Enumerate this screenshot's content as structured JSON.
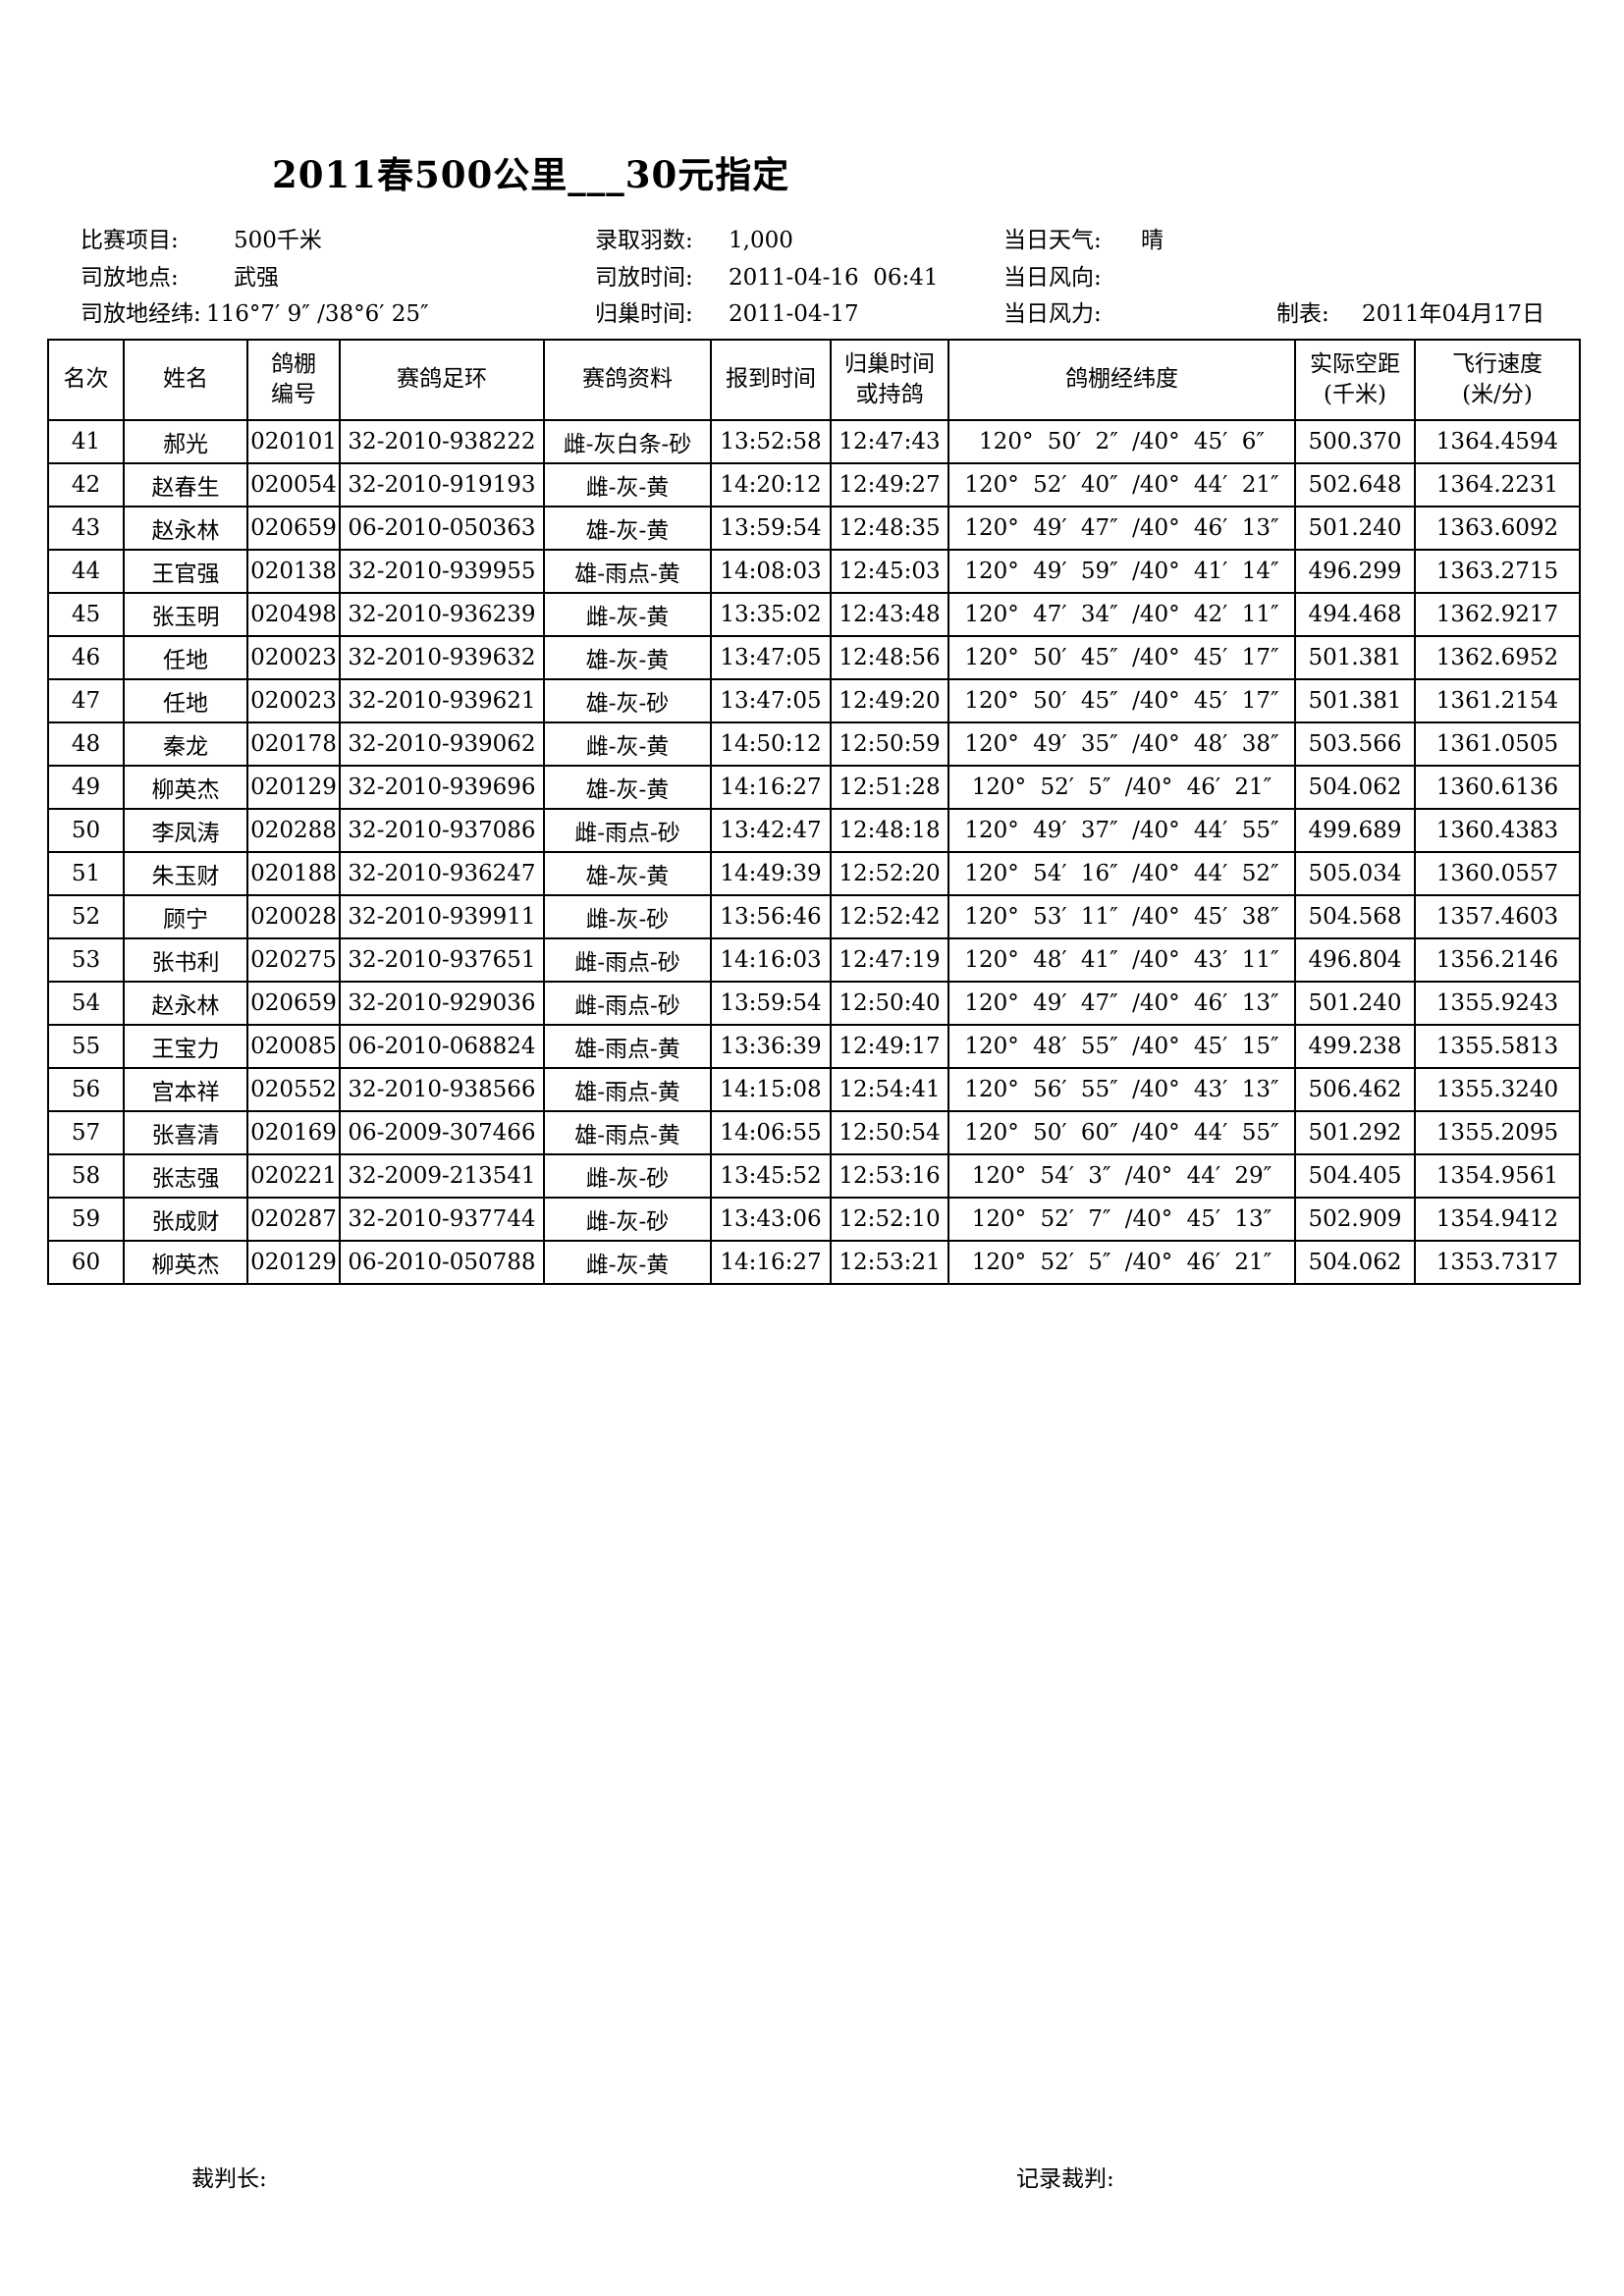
{
  "page": {
    "title": "2011春500公里___30元指定"
  },
  "info": {
    "line1": {
      "label1": "比赛项目:",
      "value1": "500千米",
      "label2": "录取羽数:",
      "value2": "1,000",
      "label3": "当日天气:",
      "value3": "晴"
    },
    "line2": {
      "label1": "司放地点:",
      "value1": "武强",
      "label2": "司放时间:",
      "value2": "2011-04-16  06:41",
      "label3": "当日风向:",
      "value3": ""
    },
    "line3": {
      "label1": "司放地经纬:",
      "value1": "116°7′ 9″ /38°6′ 25″",
      "label2": "归巢时间:",
      "value2": "2011-04-17",
      "label3": "当日风力:",
      "value3": "",
      "label4": "制表:",
      "value4": "2011年04月17日"
    }
  },
  "table": {
    "headers": [
      "名次",
      "姓名",
      "鸽棚\n编号",
      "赛鸽足环",
      "赛鸽资料",
      "报到时间",
      "归巢时间\n或持鸽",
      "鸽棚经纬度",
      "实际空距\n(千米)",
      "飞行速度\n(米/分)"
    ],
    "col_keys": [
      "rank",
      "name",
      "loft-number",
      "ring-number",
      "pigeon-info",
      "report-time",
      "arrival-time",
      "loft-coordinates",
      "distance-km",
      "speed-m-min"
    ],
    "rows": [
      [
        "41",
        "郝光",
        "020101",
        "32-2010-938222",
        "雌-灰白条-砂",
        "13:52:58",
        "12:47:43",
        "120° 50′ 2″ /40° 45′ 6″",
        "500.370",
        "1364.4594"
      ],
      [
        "42",
        "赵春生",
        "020054",
        "32-2010-919193",
        "雌-灰-黄",
        "14:20:12",
        "12:49:27",
        "120° 52′ 40″ /40° 44′ 21″",
        "502.648",
        "1364.2231"
      ],
      [
        "43",
        "赵永林",
        "020659",
        "06-2010-050363",
        "雄-灰-黄",
        "13:59:54",
        "12:48:35",
        "120° 49′ 47″ /40° 46′ 13″",
        "501.240",
        "1363.6092"
      ],
      [
        "44",
        "王官强",
        "020138",
        "32-2010-939955",
        "雄-雨点-黄",
        "14:08:03",
        "12:45:03",
        "120° 49′ 59″ /40° 41′ 14″",
        "496.299",
        "1363.2715"
      ],
      [
        "45",
        "张玉明",
        "020498",
        "32-2010-936239",
        "雌-灰-黄",
        "13:35:02",
        "12:43:48",
        "120° 47′ 34″ /40° 42′ 11″",
        "494.468",
        "1362.9217"
      ],
      [
        "46",
        "任地",
        "020023",
        "32-2010-939632",
        "雄-灰-黄",
        "13:47:05",
        "12:48:56",
        "120° 50′ 45″ /40° 45′ 17″",
        "501.381",
        "1362.6952"
      ],
      [
        "47",
        "任地",
        "020023",
        "32-2010-939621",
        "雄-灰-砂",
        "13:47:05",
        "12:49:20",
        "120° 50′ 45″ /40° 45′ 17″",
        "501.381",
        "1361.2154"
      ],
      [
        "48",
        "秦龙",
        "020178",
        "32-2010-939062",
        "雌-灰-黄",
        "14:50:12",
        "12:50:59",
        "120° 49′ 35″ /40° 48′ 38″",
        "503.566",
        "1361.0505"
      ],
      [
        "49",
        "柳英杰",
        "020129",
        "32-2010-939696",
        "雄-灰-黄",
        "14:16:27",
        "12:51:28",
        "120° 52′ 5″ /40° 46′ 21″",
        "504.062",
        "1360.6136"
      ],
      [
        "50",
        "李凤涛",
        "020288",
        "32-2010-937086",
        "雌-雨点-砂",
        "13:42:47",
        "12:48:18",
        "120° 49′ 37″ /40° 44′ 55″",
        "499.689",
        "1360.4383"
      ],
      [
        "51",
        "朱玉财",
        "020188",
        "32-2010-936247",
        "雄-灰-黄",
        "14:49:39",
        "12:52:20",
        "120° 54′ 16″ /40° 44′ 52″",
        "505.034",
        "1360.0557"
      ],
      [
        "52",
        "顾宁",
        "020028",
        "32-2010-939911",
        "雌-灰-砂",
        "13:56:46",
        "12:52:42",
        "120° 53′ 11″ /40° 45′ 38″",
        "504.568",
        "1357.4603"
      ],
      [
        "53",
        "张书利",
        "020275",
        "32-2010-937651",
        "雌-雨点-砂",
        "14:16:03",
        "12:47:19",
        "120° 48′ 41″ /40° 43′ 11″",
        "496.804",
        "1356.2146"
      ],
      [
        "54",
        "赵永林",
        "020659",
        "32-2010-929036",
        "雌-雨点-砂",
        "13:59:54",
        "12:50:40",
        "120° 49′ 47″ /40° 46′ 13″",
        "501.240",
        "1355.9243"
      ],
      [
        "55",
        "王宝力",
        "020085",
        "06-2010-068824",
        "雄-雨点-黄",
        "13:36:39",
        "12:49:17",
        "120° 48′ 55″ /40° 45′ 15″",
        "499.238",
        "1355.5813"
      ],
      [
        "56",
        "宫本祥",
        "020552",
        "32-2010-938566",
        "雄-雨点-黄",
        "14:15:08",
        "12:54:41",
        "120° 56′ 55″ /40° 43′ 13″",
        "506.462",
        "1355.3240"
      ],
      [
        "57",
        "张喜清",
        "020169",
        "06-2009-307466",
        "雄-雨点-黄",
        "14:06:55",
        "12:50:54",
        "120° 50′ 60″ /40° 44′ 55″",
        "501.292",
        "1355.2095"
      ],
      [
        "58",
        "张志强",
        "020221",
        "32-2009-213541",
        "雌-灰-砂",
        "13:45:52",
        "12:53:16",
        "120° 54′ 3″ /40° 44′ 29″",
        "504.405",
        "1354.9561"
      ],
      [
        "59",
        "张成财",
        "020287",
        "32-2010-937744",
        "雌-灰-砂",
        "13:43:06",
        "12:52:10",
        "120° 52′ 7″ /40° 45′ 13″",
        "502.909",
        "1354.9412"
      ],
      [
        "60",
        "柳英杰",
        "020129",
        "06-2010-050788",
        "雌-灰-黄",
        "14:16:27",
        "12:53:21",
        "120° 52′ 5″ /40° 46′ 21″",
        "504.062",
        "1353.7317"
      ]
    ]
  },
  "footer": {
    "judge_label": "裁判长:",
    "recorder_label": "记录裁判:"
  }
}
